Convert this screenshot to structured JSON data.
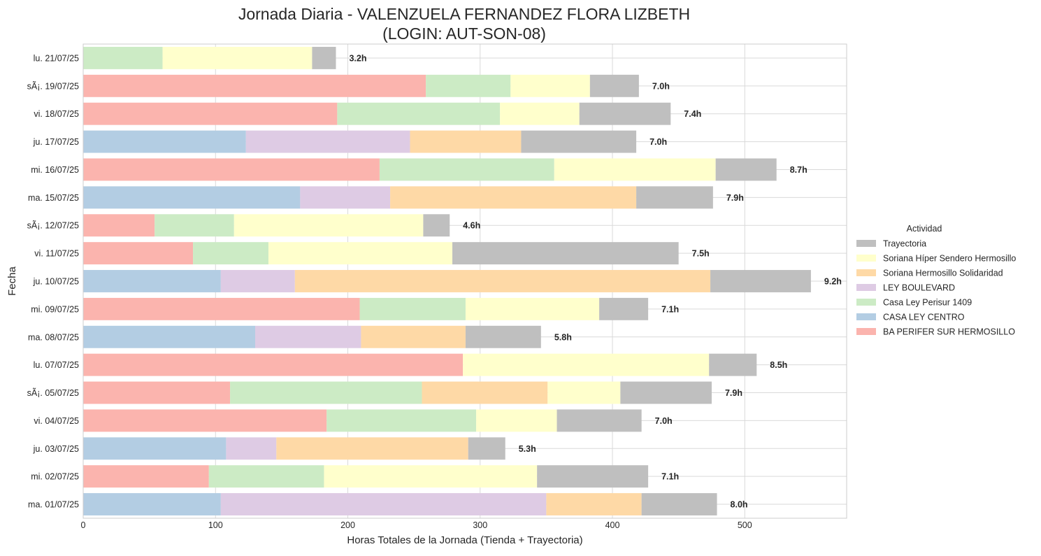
{
  "chart_data": {
    "type": "bar",
    "orientation": "horizontal",
    "stacked": true,
    "title": "Jornada Diaria - VALENZUELA FERNANDEZ FLORA LIZBETH",
    "subtitle": "(LOGIN: AUT-SON-08)",
    "xlabel": "Horas Totales de la Jornada (Tienda + Trayectoria)",
    "ylabel": "Fecha",
    "xlim": [
      0,
      577
    ],
    "xticks": [
      0,
      100,
      200,
      300,
      400,
      500
    ],
    "grid": true,
    "legend_title": "Actividad",
    "legend_placement": "center-right",
    "categories": [
      "lu. 21/07/25",
      "sÃ¡. 19/07/25",
      "vi. 18/07/25",
      "ju. 17/07/25",
      "mi. 16/07/25",
      "ma. 15/07/25",
      "sÃ¡. 12/07/25",
      "vi. 11/07/25",
      "ju. 10/07/25",
      "mi. 09/07/25",
      "ma. 08/07/25",
      "lu. 07/07/25",
      "sÃ¡. 05/07/25",
      "vi. 04/07/25",
      "ju. 03/07/25",
      "mi. 02/07/25",
      "ma. 01/07/25"
    ],
    "totals_labels": [
      "3.2h",
      "7.0h",
      "7.4h",
      "7.0h",
      "8.7h",
      "7.9h",
      "4.6h",
      "7.5h",
      "9.2h",
      "7.1h",
      "5.8h",
      "8.5h",
      "7.9h",
      "7.0h",
      "5.3h",
      "7.1h",
      "8.0h"
    ],
    "series": [
      {
        "name": "BA PERIFER SUR HERMOSILLO",
        "color": "#fbb4ae",
        "values": [
          0,
          259,
          192,
          0,
          224,
          0,
          54,
          83,
          0,
          209,
          0,
          287,
          111,
          184,
          0,
          95,
          0
        ]
      },
      {
        "name": "CASA LEY CENTRO",
        "color": "#b3cde3",
        "values": [
          0,
          0,
          0,
          123,
          0,
          164,
          0,
          0,
          104,
          0,
          130,
          0,
          0,
          0,
          108,
          0,
          104
        ]
      },
      {
        "name": "Casa Ley Perisur 1409",
        "color": "#ccebc5",
        "values": [
          60,
          64,
          123,
          0,
          132,
          0,
          60,
          57,
          0,
          80,
          0,
          0,
          145,
          113,
          0,
          87,
          0
        ]
      },
      {
        "name": "LEY BOULEVARD",
        "color": "#decbe4",
        "values": [
          0,
          0,
          0,
          124,
          0,
          68,
          0,
          0,
          56,
          0,
          80,
          0,
          0,
          0,
          38,
          0,
          246
        ]
      },
      {
        "name": "Soriana Hermosillo Solidaridad",
        "color": "#fed9a6",
        "values": [
          0,
          0,
          0,
          84,
          0,
          186,
          0,
          0,
          314,
          0,
          79,
          0,
          95,
          0,
          145,
          0,
          72
        ]
      },
      {
        "name": "Soriana Híper Sendero Hermosillo",
        "color": "#ffffcc",
        "values": [
          113,
          60,
          60,
          0,
          122,
          0,
          143,
          139,
          0,
          101,
          0,
          186,
          55,
          61,
          0,
          161,
          0
        ]
      },
      {
        "name": "Trayectoria",
        "color": "#bfbfbf",
        "values": [
          18,
          37,
          69,
          87,
          46,
          58,
          20,
          171,
          76,
          37,
          57,
          36,
          69,
          64,
          28,
          84,
          57
        ]
      }
    ]
  }
}
